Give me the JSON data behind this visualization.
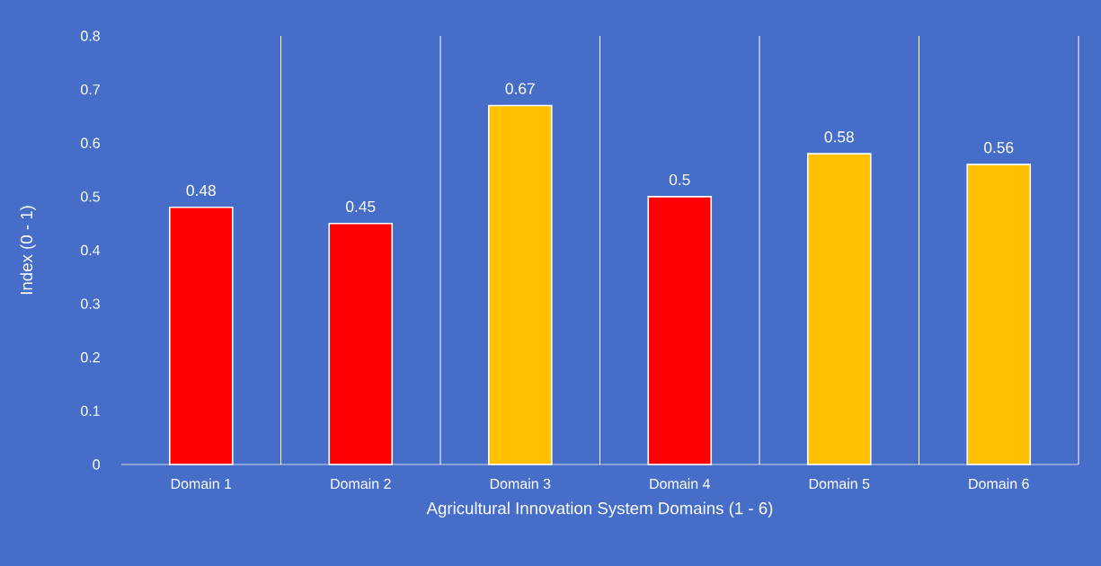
{
  "chart_data": {
    "type": "bar",
    "xlabel": "Agricultural Innovation System Domains (1 - 6)",
    "ylabel": "Index (0 - 1)",
    "categories": [
      "Domain 1",
      "Domain 2",
      "Domain 3",
      "Domain 4",
      "Domain 5",
      "Domain 6"
    ],
    "values": [
      0.48,
      0.45,
      0.67,
      0.5,
      0.58,
      0.56
    ],
    "colors": [
      "#ff0000",
      "#ff0000",
      "#ffc000",
      "#ff0000",
      "#ffc000",
      "#ffc000"
    ],
    "ylim": [
      0,
      0.8
    ],
    "yticks": [
      0,
      0.1,
      0.2,
      0.3,
      0.4,
      0.5,
      0.6,
      0.7,
      0.8
    ],
    "grid": "x",
    "data_labels": true
  }
}
